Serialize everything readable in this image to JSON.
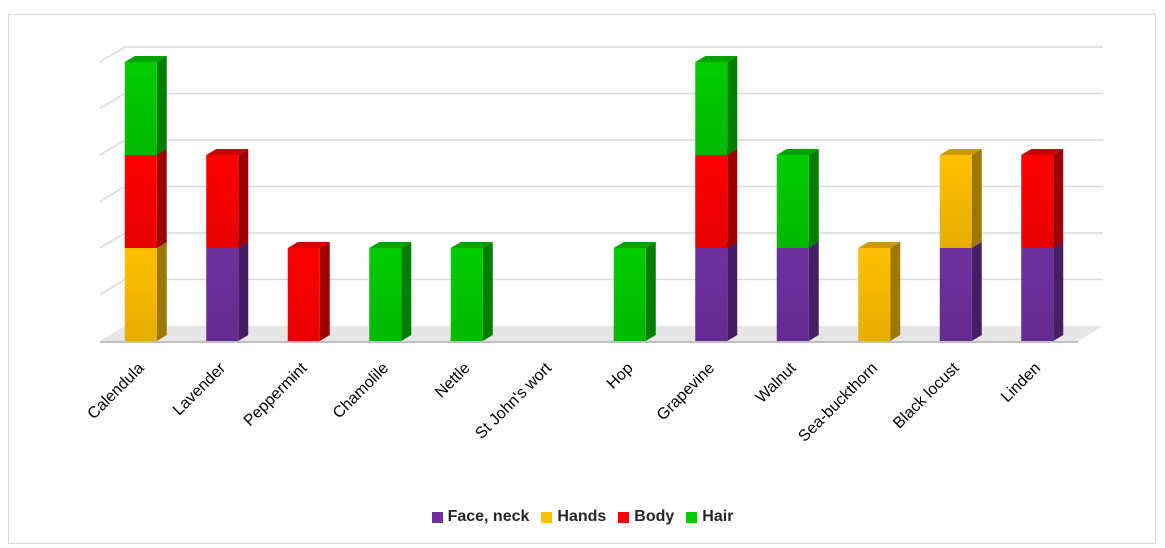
{
  "chart_data": {
    "type": "bar",
    "stacked": true,
    "three_d": true,
    "categories": [
      "Calendula",
      "Lavender",
      "Peppermint",
      "Chamolile",
      "Nettle",
      "St John's wort",
      "Hop",
      "Grapevine",
      "Walnut",
      "Sea-buckthorn",
      "Black locust",
      "Linden"
    ],
    "series": [
      {
        "name": "Face, neck",
        "color": "#7030a0",
        "values": [
          0,
          1,
          0,
          0,
          0,
          0,
          0,
          1,
          1,
          0,
          1,
          1
        ]
      },
      {
        "name": "Hands",
        "color": "#ffc000",
        "values": [
          1,
          0,
          0,
          0,
          0,
          0,
          0,
          0,
          0,
          1,
          1,
          0
        ]
      },
      {
        "name": "Body",
        "color": "#ff0000",
        "values": [
          1,
          1,
          1,
          0,
          0,
          0,
          0,
          1,
          0,
          0,
          0,
          1
        ]
      },
      {
        "name": "Hair",
        "color": "#00cc00",
        "values": [
          1,
          0,
          0,
          1,
          1,
          0,
          1,
          1,
          1,
          0,
          0,
          0
        ]
      }
    ],
    "ylim": [
      0,
      3
    ],
    "grid": true,
    "legend": "bottom",
    "xlabel": "",
    "ylabel": "",
    "title": ""
  }
}
